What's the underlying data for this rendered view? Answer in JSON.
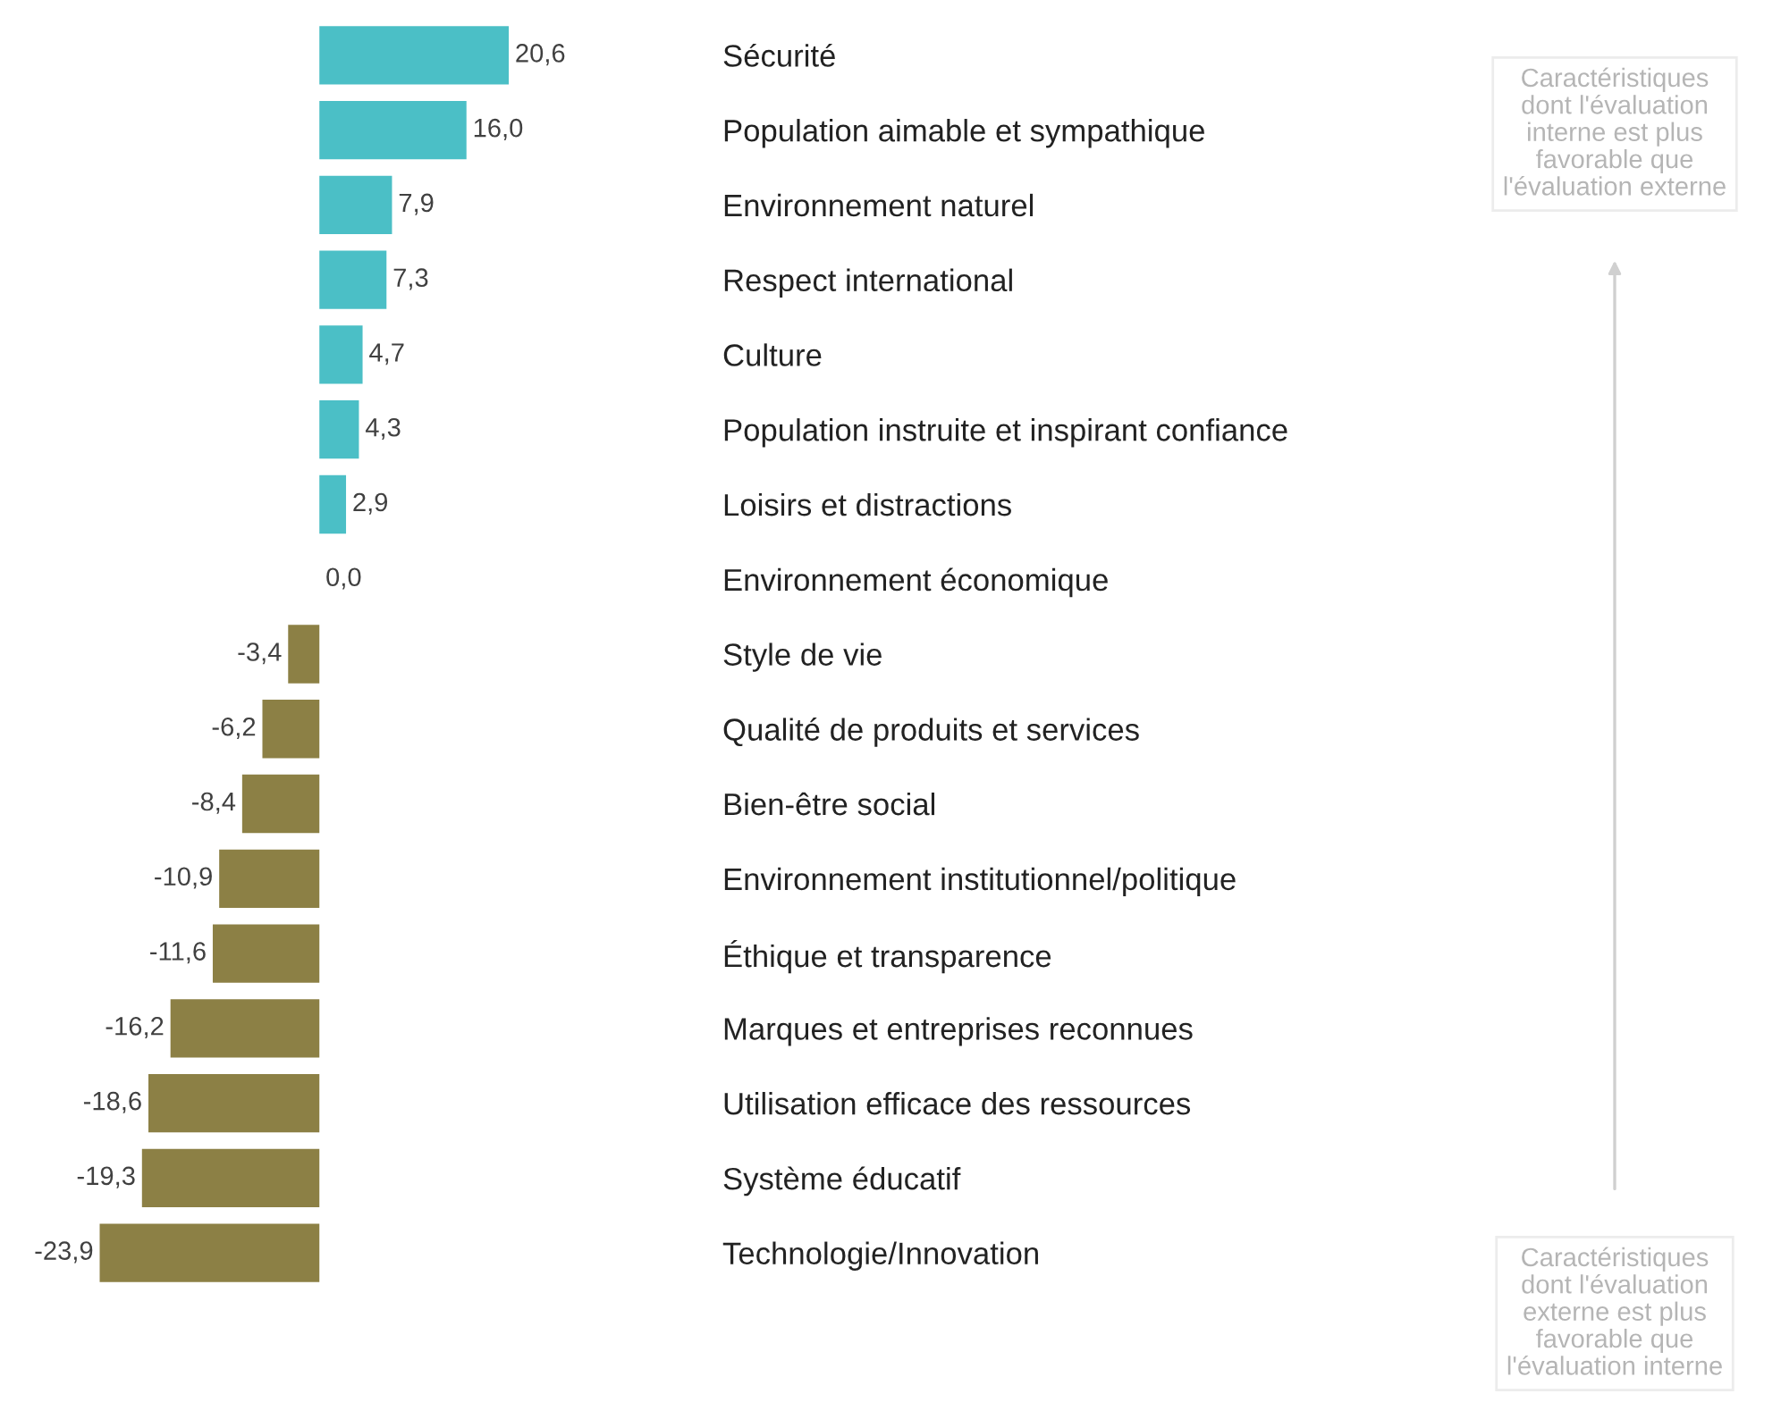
{
  "chart_data": {
    "type": "bar",
    "orientation": "horizontal",
    "categories": [
      "Sécurité",
      "Population aimable et sympathique",
      "Environnement naturel",
      "Respect international",
      "Culture",
      "Population instruite et inspirant confiance",
      "Loisirs et distractions",
      "Environnement économique",
      "Style de vie",
      "Qualité de produits et services",
      "Bien-être social",
      "Environnement institutionnel/politique",
      "Éthique et transparence",
      "Marques et entreprises reconnues",
      "Utilisation efficace des ressources",
      "Système éducatif",
      "Technologie/Innovation"
    ],
    "values": [
      20.6,
      16.0,
      7.9,
      7.3,
      4.7,
      4.3,
      2.9,
      0.0,
      -3.4,
      -6.2,
      -8.4,
      -10.9,
      -11.6,
      -16.2,
      -18.6,
      -19.3,
      -23.9
    ],
    "colors": [
      "#4bbfc6",
      "#4bbfc6",
      "#4bbfc6",
      "#4bbfc6",
      "#4bbfc6",
      "#4bbfc6",
      "#4bbfc6",
      "#a9dde0",
      "#8c8045",
      "#8c8045",
      "#8c8045",
      "#8c8045",
      "#8c8045",
      "#8c8045",
      "#8c8045",
      "#8c8045",
      "#8c8045"
    ],
    "value_labels": [
      "20,6",
      "16,0",
      "7,9",
      "7,3",
      "4,7",
      "4,3",
      "2,9",
      "0,0",
      "-3,4",
      "-6,2",
      "-8,4",
      "-10,9",
      "-11,6",
      "-16,2",
      "-18,6",
      "-19,3",
      "-23,9"
    ],
    "tick_labels": "y",
    "grid": false,
    "legend": false,
    "annotations": [
      "Caractéristiques\ndont l'évaluation\ninterne est plus\nfavorable que\nl'évaluation externe",
      "Caractéristiques\ndont l'évaluation\nexterne est plus\nfavorable que\nl'évaluation interne"
    ]
  }
}
